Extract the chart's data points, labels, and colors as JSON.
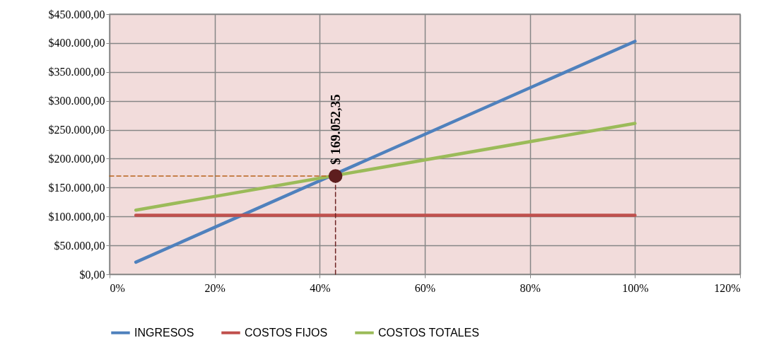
{
  "chart_data": {
    "type": "line",
    "xlim": [
      0,
      120
    ],
    "xticks": [
      {
        "value": 0,
        "label": "0%"
      },
      {
        "value": 20,
        "label": "20%"
      },
      {
        "value": 40,
        "label": "40%"
      },
      {
        "value": 60,
        "label": "60%"
      },
      {
        "value": 80,
        "label": "80%"
      },
      {
        "value": 100,
        "label": "100%"
      },
      {
        "value": 120,
        "label": "120%"
      }
    ],
    "ylim": [
      0,
      450000
    ],
    "yticks": [
      {
        "value": 0,
        "label": "$0,00"
      },
      {
        "value": 50000,
        "label": "$50.000,00"
      },
      {
        "value": 100000,
        "label": "$100.000,00"
      },
      {
        "value": 150000,
        "label": "$150.000,00"
      },
      {
        "value": 200000,
        "label": "$200.000,00"
      },
      {
        "value": 250000,
        "label": "$250.000,00"
      },
      {
        "value": 300000,
        "label": "$300.000,00"
      },
      {
        "value": 350000,
        "label": "$350.000,00"
      },
      {
        "value": 400000,
        "label": "$400.000,00"
      },
      {
        "value": 450000,
        "label": "$450.000,00"
      }
    ],
    "grid": true,
    "legend": "bottom",
    "series": [
      {
        "name": "INGRESOS",
        "color": "#4f81bd",
        "x": [
          5,
          100
        ],
        "values": [
          21000,
          403000
        ]
      },
      {
        "name": "COSTOS FIJOS",
        "color": "#c0504d",
        "x": [
          5,
          100
        ],
        "values": [
          102000,
          102000
        ]
      },
      {
        "name": "COSTOS TOTALES",
        "color": "#9bbb59",
        "x": [
          5,
          100
        ],
        "values": [
          111000,
          261000
        ]
      },
      {
        "color": "#b8621b",
        "line_style": "dashed",
        "x": [
          0,
          43
        ],
        "values": [
          170000,
          170000
        ]
      },
      {
        "color": "#6e2424",
        "line_style": "dashed",
        "x": [
          43,
          43
        ],
        "values": [
          0,
          170000
        ]
      },
      {
        "color": "#5e1e1e",
        "type": "scatter",
        "marker": "circle",
        "x": [
          43
        ],
        "values": [
          170000
        ]
      }
    ],
    "annotations": [
      {
        "text": "$ 169.052,35",
        "x": 43,
        "y": 170000
      }
    ]
  }
}
